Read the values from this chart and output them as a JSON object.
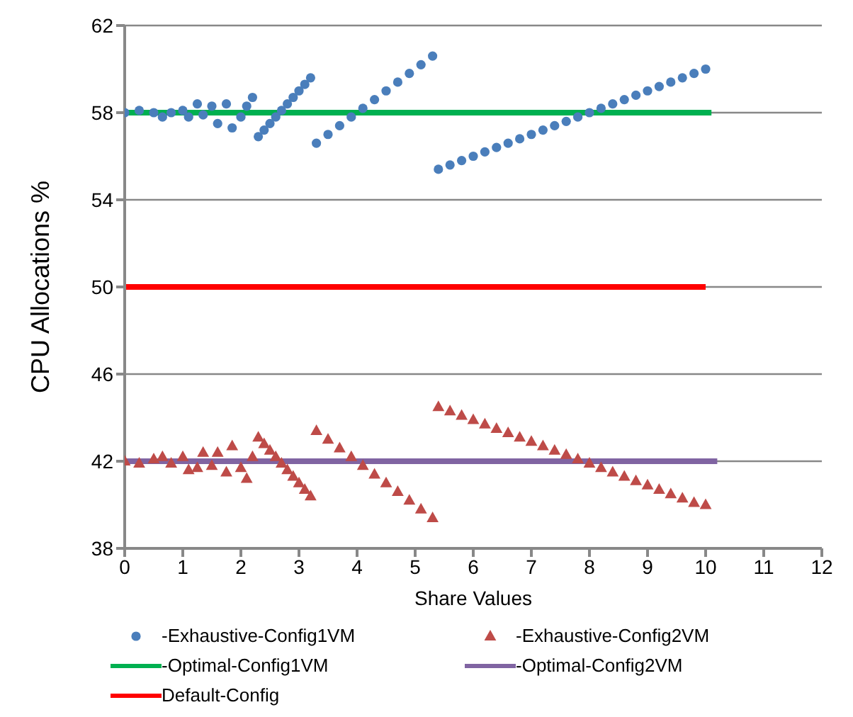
{
  "chart_data": {
    "type": "scatter",
    "xlabel": "Share Values",
    "ylabel": "CPU Allocations  %",
    "xlim": [
      0,
      12
    ],
    "xticks": [
      0,
      1,
      2,
      3,
      4,
      5,
      6,
      7,
      8,
      9,
      10,
      11,
      12
    ],
    "ylim": [
      38,
      62
    ],
    "yticks": [
      38,
      42,
      46,
      50,
      54,
      58,
      62
    ],
    "grid": "y",
    "legend": "bottom",
    "series": [
      {
        "name": "-Exhaustive-Config1VM",
        "marker": "circle",
        "color": "#4a7ebb",
        "x": [
          0,
          0.25,
          0.5,
          0.65,
          0.8,
          1,
          1.1,
          1.25,
          1.35,
          1.5,
          1.6,
          1.75,
          1.85,
          2,
          2.1,
          2.2,
          2.3,
          2.4,
          2.5,
          2.6,
          2.7,
          2.8,
          2.9,
          3,
          3.1,
          3.2,
          3.3,
          3.5,
          3.7,
          3.9,
          4.1,
          4.3,
          4.5,
          4.7,
          4.9,
          5.1,
          5.3,
          5.4,
          5.6,
          5.8,
          6,
          6.2,
          6.4,
          6.6,
          6.8,
          7,
          7.2,
          7.4,
          7.6,
          7.8,
          8,
          8.2,
          8.4,
          8.6,
          8.8,
          9,
          9.2,
          9.4,
          9.6,
          9.8,
          10
        ],
        "values": [
          58,
          58.1,
          58,
          57.8,
          58,
          58.1,
          57.8,
          58.4,
          57.9,
          58.3,
          57.5,
          58.4,
          57.3,
          57.8,
          58.3,
          58.7,
          56.9,
          57.2,
          57.5,
          57.8,
          58.1,
          58.4,
          58.7,
          59,
          59.3,
          59.6,
          56.6,
          57,
          57.4,
          57.8,
          58.2,
          58.6,
          59,
          59.4,
          59.8,
          60.2,
          60.6,
          55.4,
          55.6,
          55.8,
          56,
          56.2,
          56.4,
          56.6,
          56.8,
          57,
          57.2,
          57.4,
          57.6,
          57.8,
          58,
          58.2,
          58.4,
          58.6,
          58.8,
          59,
          59.2,
          59.4,
          59.6,
          59.8,
          60
        ]
      },
      {
        "name": "-Exhaustive-Config2VM",
        "marker": "triangle",
        "color": "#be4b48",
        "x": [
          0,
          0.25,
          0.5,
          0.65,
          0.8,
          1,
          1.1,
          1.25,
          1.35,
          1.5,
          1.6,
          1.75,
          1.85,
          2,
          2.1,
          2.2,
          2.3,
          2.4,
          2.5,
          2.6,
          2.7,
          2.8,
          2.9,
          3,
          3.1,
          3.2,
          3.3,
          3.5,
          3.7,
          3.9,
          4.1,
          4.3,
          4.5,
          4.7,
          4.9,
          5.1,
          5.3,
          5.4,
          5.6,
          5.8,
          6,
          6.2,
          6.4,
          6.6,
          6.8,
          7,
          7.2,
          7.4,
          7.6,
          7.8,
          8,
          8.2,
          8.4,
          8.6,
          8.8,
          9,
          9.2,
          9.4,
          9.6,
          9.8,
          10
        ],
        "values": [
          42,
          41.9,
          42.1,
          42.2,
          41.9,
          42.2,
          41.6,
          41.7,
          42.4,
          41.8,
          42.4,
          41.5,
          42.7,
          41.7,
          41.2,
          42.2,
          43.1,
          42.8,
          42.5,
          42.2,
          41.9,
          41.6,
          41.3,
          41,
          40.7,
          40.4,
          43.4,
          43,
          42.6,
          42.2,
          41.8,
          41.4,
          41,
          40.6,
          40.2,
          39.8,
          39.4,
          44.5,
          44.3,
          44.1,
          43.9,
          43.7,
          43.5,
          43.3,
          43.1,
          42.9,
          42.7,
          42.5,
          42.3,
          42.1,
          41.9,
          41.7,
          41.5,
          41.3,
          41.1,
          40.9,
          40.7,
          40.5,
          40.3,
          40.1,
          40
        ]
      },
      {
        "name": "-Optimal-Config1VM",
        "type": "line",
        "marker": "none",
        "color": "#00b050",
        "x": [
          0,
          10.1
        ],
        "values": [
          58,
          58
        ]
      },
      {
        "name": "-Optimal-Config2VM",
        "type": "line",
        "marker": "none",
        "color": "#8064a2",
        "x": [
          0,
          10.2
        ],
        "values": [
          42,
          42
        ]
      },
      {
        "name": "Default-Config",
        "type": "line",
        "marker": "none",
        "color": "#ff0000",
        "x": [
          0,
          10
        ],
        "values": [
          50,
          50
        ]
      }
    ]
  }
}
